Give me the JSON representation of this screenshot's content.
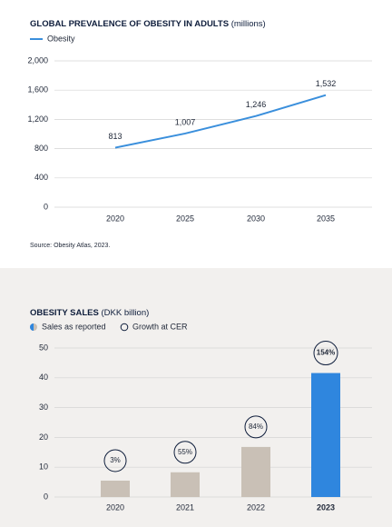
{
  "chart_data": [
    {
      "type": "line",
      "title": "GLOBAL PREVALENCE OF OBESITY IN ADULTS",
      "title_unit": "(millions)",
      "categories": [
        "2020",
        "2025",
        "2030",
        "2035"
      ],
      "series": [
        {
          "name": "Obesity",
          "color": "#3a8fdc",
          "values": [
            813,
            1007,
            1246,
            1532
          ],
          "value_labels": [
            "813",
            "1,007",
            "1,246",
            "1,532"
          ]
        }
      ],
      "ylim": [
        0,
        2000
      ],
      "yticks": [
        0,
        400,
        800,
        {
          "value": 1200,
          "label": "1,200"
        },
        {
          "value": 1600,
          "label": "1,600"
        },
        {
          "value": 2000,
          "label": "2,000"
        }
      ],
      "grid": true,
      "source": "Source: Obesity Atlas, 2023."
    },
    {
      "type": "bar",
      "title": "OBESITY SALES",
      "title_unit": "(DKK billion)",
      "categories": [
        "2020",
        "2021",
        "2022",
        "2023"
      ],
      "series": [
        {
          "name": "Sales as reported",
          "colors": [
            "#c9c0b6",
            "#c9c0b6",
            "#c9c0b6",
            "#2f86de"
          ],
          "values": [
            5.5,
            8.3,
            16.8,
            41.6
          ]
        }
      ],
      "growth": {
        "name": "Growth at CER",
        "values": [
          3,
          55,
          84,
          154
        ],
        "value_labels": [
          "3%",
          "55%",
          "84%",
          "154%"
        ]
      },
      "ylim": [
        0,
        50
      ],
      "yticks": [
        0,
        10,
        20,
        30,
        40,
        50
      ],
      "grid": true
    }
  ]
}
